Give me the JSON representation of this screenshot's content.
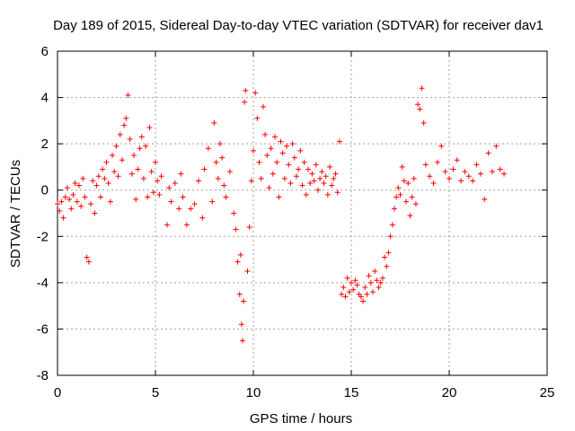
{
  "chart_data": {
    "type": "scatter",
    "title": "Day 189 of 2015, Sidereal Day-to-day VTEC variation (SDTVAR) for receiver dav1",
    "xlabel": "GPS time / hours",
    "ylabel": "SDTVAR / TECUs",
    "xlim": [
      0,
      25
    ],
    "ylim": [
      -8,
      6
    ],
    "xticks": [
      0,
      5,
      10,
      15,
      20,
      25
    ],
    "yticks": [
      -8,
      -6,
      -4,
      -2,
      0,
      2,
      4,
      6
    ],
    "grid": true,
    "marker": "+",
    "series_color": "#ff0000",
    "series": [
      {
        "name": "SDTVAR",
        "x": [
          0.0,
          0.1,
          0.2,
          0.3,
          0.4,
          0.5,
          0.6,
          0.7,
          0.8,
          0.9,
          1.0,
          1.1,
          1.2,
          1.3,
          1.4,
          1.5,
          1.6,
          1.7,
          1.8,
          1.9,
          2.0,
          2.1,
          2.2,
          2.3,
          2.4,
          2.5,
          2.6,
          2.7,
          2.8,
          2.9,
          3.0,
          3.1,
          3.2,
          3.3,
          3.4,
          3.5,
          3.6,
          3.7,
          3.8,
          3.9,
          4.0,
          4.1,
          4.2,
          4.3,
          4.4,
          4.5,
          4.6,
          4.7,
          4.8,
          4.9,
          5.0,
          5.1,
          5.2,
          5.3,
          5.6,
          5.7,
          5.8,
          6.0,
          6.2,
          6.3,
          6.4,
          6.6,
          6.8,
          7.0,
          7.2,
          7.4,
          7.5,
          7.7,
          7.9,
          8.0,
          8.1,
          8.2,
          8.3,
          8.4,
          8.5,
          8.6,
          8.8,
          9.0,
          9.1,
          9.2,
          9.3,
          9.35,
          9.4,
          9.45,
          9.5,
          9.55,
          9.6,
          9.7,
          9.8,
          9.9,
          10.0,
          10.1,
          10.2,
          10.3,
          10.4,
          10.5,
          10.6,
          10.7,
          10.8,
          10.9,
          11.0,
          11.1,
          11.2,
          11.3,
          11.4,
          11.5,
          11.6,
          11.7,
          11.8,
          11.9,
          12.0,
          12.1,
          12.2,
          12.3,
          12.4,
          12.5,
          12.6,
          12.7,
          12.8,
          12.9,
          13.0,
          13.1,
          13.2,
          13.3,
          13.4,
          13.5,
          13.6,
          13.7,
          13.8,
          13.9,
          14.0,
          14.1,
          14.2,
          14.3,
          14.4,
          14.5,
          14.6,
          14.7,
          14.8,
          14.9,
          15.0,
          15.1,
          15.2,
          15.3,
          15.4,
          15.5,
          15.6,
          15.7,
          15.8,
          15.9,
          16.0,
          16.1,
          16.2,
          16.3,
          16.4,
          16.5,
          16.6,
          16.7,
          16.8,
          16.9,
          17.0,
          17.1,
          17.2,
          17.3,
          17.4,
          17.5,
          17.6,
          17.7,
          17.8,
          17.9,
          18.0,
          18.1,
          18.2,
          18.3,
          18.4,
          18.5,
          18.6,
          18.7,
          18.8,
          19.0,
          19.2,
          19.4,
          19.6,
          19.8,
          20.0,
          20.2,
          20.4,
          20.6,
          20.8,
          21.0,
          21.2,
          21.4,
          21.6,
          21.8,
          22.0,
          22.2,
          22.4,
          22.6,
          22.8
        ],
        "y": [
          -0.6,
          -0.9,
          -0.5,
          -1.2,
          -0.3,
          0.1,
          -0.4,
          -0.8,
          -0.2,
          0.3,
          -0.5,
          0.2,
          -0.7,
          0.5,
          -0.3,
          -2.9,
          -3.1,
          -0.6,
          0.4,
          -1.0,
          0.2,
          0.6,
          -0.3,
          0.9,
          0.5,
          1.2,
          0.3,
          -0.5,
          1.5,
          0.8,
          1.9,
          0.6,
          2.4,
          1.3,
          2.8,
          3.1,
          4.1,
          2.2,
          0.7,
          1.5,
          -0.4,
          0.9,
          1.8,
          2.3,
          0.5,
          1.9,
          -0.3,
          2.7,
          0.8,
          -0.1,
          1.2,
          0.4,
          -0.2,
          0.6,
          -1.5,
          0.1,
          -0.5,
          0.3,
          -0.8,
          0.7,
          -0.3,
          -1.5,
          -0.8,
          -0.6,
          0.4,
          -1.2,
          0.9,
          1.8,
          -0.5,
          2.9,
          1.2,
          0.5,
          2.0,
          1.4,
          0.2,
          -0.3,
          0.8,
          -1.0,
          -1.7,
          -3.1,
          -4.5,
          -2.8,
          -5.8,
          -6.5,
          -4.8,
          3.8,
          4.3,
          -3.5,
          -1.6,
          0.4,
          1.7,
          4.2,
          3.1,
          1.2,
          0.5,
          3.6,
          2.4,
          1.5,
          0.1,
          1.8,
          0.7,
          2.3,
          1.2,
          -0.3,
          2.1,
          1.6,
          0.5,
          1.9,
          1.1,
          0.3,
          2.0,
          1.4,
          0.6,
          0.9,
          1.7,
          0.2,
          1.2,
          -0.2,
          0.9,
          0.3,
          0.7,
          0.4,
          1.1,
          0.0,
          0.5,
          0.8,
          0.3,
          0.6,
          -0.2,
          1.0,
          0.2,
          0.5,
          0.7,
          -0.1,
          2.1,
          -4.5,
          -4.2,
          -4.6,
          -3.8,
          -4.4,
          -4.0,
          -4.3,
          -3.9,
          -4.1,
          -4.5,
          -4.6,
          -4.8,
          -4.2,
          -4.5,
          -3.7,
          -4.0,
          -4.4,
          -3.5,
          -3.9,
          -4.2,
          -4.0,
          -3.8,
          -2.9,
          -3.3,
          -2.7,
          -2.0,
          -1.5,
          -0.8,
          -0.3,
          0.1,
          -0.2,
          1.0,
          0.4,
          -0.5,
          0.3,
          -1.1,
          -0.3,
          0.5,
          -0.6,
          3.7,
          3.5,
          4.4,
          2.9,
          1.1,
          0.6,
          0.3,
          1.2,
          1.9,
          0.8,
          0.5,
          0.9,
          1.3,
          0.4,
          0.8,
          0.6,
          0.4,
          1.1,
          0.7,
          -0.4,
          1.6,
          0.8,
          1.9,
          0.9,
          0.7
        ]
      }
    ]
  }
}
